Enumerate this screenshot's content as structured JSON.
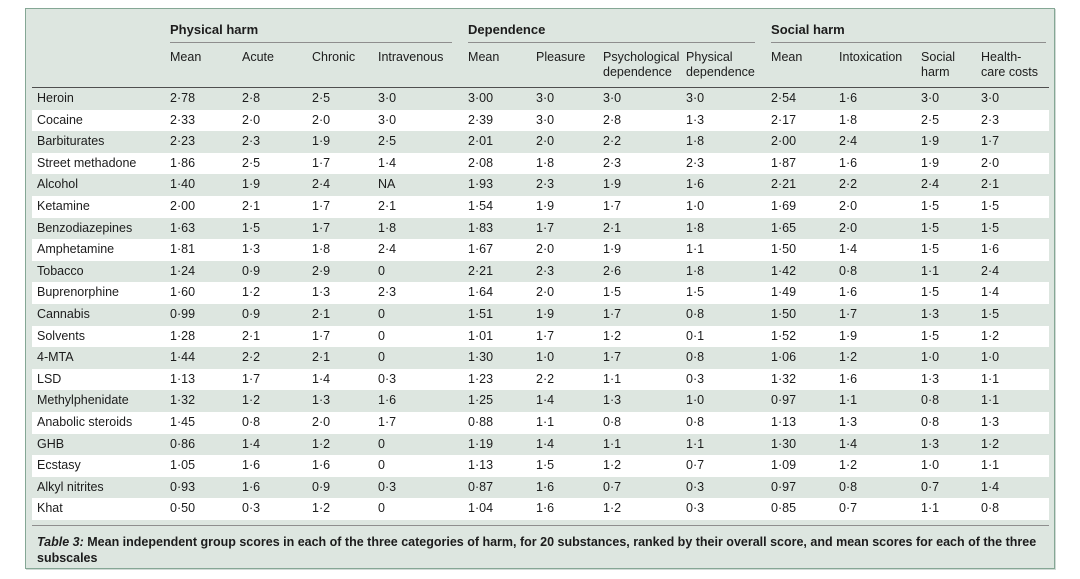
{
  "table": {
    "caption_label": "Table 3:",
    "caption_text": " Mean independent group scores in each of the three categories of harm, for 20 substances, ranked by their overall score, and mean scores for each of the three subscales",
    "groups": [
      {
        "label": "Physical harm",
        "columns": [
          "Mean",
          "Acute",
          "Chronic",
          "Intravenous"
        ]
      },
      {
        "label": "Dependence",
        "columns": [
          "Mean",
          "Pleasure",
          "Psychological dependence",
          "Physical dependence"
        ]
      },
      {
        "label": "Social harm",
        "columns": [
          "Mean",
          "Intoxication",
          "Social harm",
          "Health-care costs"
        ]
      }
    ],
    "rows": [
      {
        "name": "Heroin",
        "values": [
          "2·78",
          "2·8",
          "2·5",
          "3·0",
          "3·00",
          "3·0",
          "3·0",
          "3·0",
          "2·54",
          "1·6",
          "3·0",
          "3·0"
        ]
      },
      {
        "name": "Cocaine",
        "values": [
          "2·33",
          "2·0",
          "2·0",
          "3·0",
          "2·39",
          "3·0",
          "2·8",
          "1·3",
          "2·17",
          "1·8",
          "2·5",
          "2·3"
        ]
      },
      {
        "name": "Barbiturates",
        "values": [
          "2·23",
          "2·3",
          "1·9",
          "2·5",
          "2·01",
          "2·0",
          "2·2",
          "1·8",
          "2·00",
          "2·4",
          "1·9",
          "1·7"
        ]
      },
      {
        "name": "Street methadone",
        "values": [
          "1·86",
          "2·5",
          "1·7",
          "1·4",
          "2·08",
          "1·8",
          "2·3",
          "2·3",
          "1·87",
          "1·6",
          "1·9",
          "2·0"
        ]
      },
      {
        "name": "Alcohol",
        "values": [
          "1·40",
          "1·9",
          "2·4",
          "NA",
          "1·93",
          "2·3",
          "1·9",
          "1·6",
          "2·21",
          "2·2",
          "2·4",
          "2·1"
        ]
      },
      {
        "name": "Ketamine",
        "values": [
          "2·00",
          "2·1",
          "1·7",
          "2·1",
          "1·54",
          "1·9",
          "1·7",
          "1·0",
          "1·69",
          "2·0",
          "1·5",
          "1·5"
        ]
      },
      {
        "name": "Benzodiazepines",
        "values": [
          "1·63",
          "1·5",
          "1·7",
          "1·8",
          "1·83",
          "1·7",
          "2·1",
          "1·8",
          "1·65",
          "2·0",
          "1·5",
          "1·5"
        ]
      },
      {
        "name": "Amphetamine",
        "values": [
          "1·81",
          "1·3",
          "1·8",
          "2·4",
          "1·67",
          "2·0",
          "1·9",
          "1·1",
          "1·50",
          "1·4",
          "1·5",
          "1·6"
        ]
      },
      {
        "name": "Tobacco",
        "values": [
          "1·24",
          "0·9",
          "2·9",
          "0",
          "2·21",
          "2·3",
          "2·6",
          "1·8",
          "1·42",
          "0·8",
          "1·1",
          "2·4"
        ]
      },
      {
        "name": "Buprenorphine",
        "values": [
          "1·60",
          "1·2",
          "1·3",
          "2·3",
          "1·64",
          "2·0",
          "1·5",
          "1·5",
          "1·49",
          "1·6",
          "1·5",
          "1·4"
        ]
      },
      {
        "name": "Cannabis",
        "values": [
          "0·99",
          "0·9",
          "2·1",
          "0",
          "1·51",
          "1·9",
          "1·7",
          "0·8",
          "1·50",
          "1·7",
          "1·3",
          "1·5"
        ]
      },
      {
        "name": "Solvents",
        "values": [
          "1·28",
          "2·1",
          "1·7",
          "0",
          "1·01",
          "1·7",
          "1·2",
          "0·1",
          "1·52",
          "1·9",
          "1·5",
          "1·2"
        ]
      },
      {
        "name": "4-MTA",
        "values": [
          "1·44",
          "2·2",
          "2·1",
          "0",
          "1·30",
          "1·0",
          "1·7",
          "0·8",
          "1·06",
          "1·2",
          "1·0",
          "1·0"
        ]
      },
      {
        "name": "LSD",
        "values": [
          "1·13",
          "1·7",
          "1·4",
          "0·3",
          "1·23",
          "2·2",
          "1·1",
          "0·3",
          "1·32",
          "1·6",
          "1·3",
          "1·1"
        ]
      },
      {
        "name": "Methylphenidate",
        "values": [
          "1·32",
          "1·2",
          "1·3",
          "1·6",
          "1·25",
          "1·4",
          "1·3",
          "1·0",
          "0·97",
          "1·1",
          "0·8",
          "1·1"
        ]
      },
      {
        "name": "Anabolic steroids",
        "values": [
          "1·45",
          "0·8",
          "2·0",
          "1·7",
          "0·88",
          "1·1",
          "0·8",
          "0·8",
          "1·13",
          "1·3",
          "0·8",
          "1·3"
        ]
      },
      {
        "name": "GHB",
        "values": [
          "0·86",
          "1·4",
          "1·2",
          "0",
          "1·19",
          "1·4",
          "1·1",
          "1·1",
          "1·30",
          "1·4",
          "1·3",
          "1·2"
        ]
      },
      {
        "name": "Ecstasy",
        "values": [
          "1·05",
          "1·6",
          "1·6",
          "0",
          "1·13",
          "1·5",
          "1·2",
          "0·7",
          "1·09",
          "1·2",
          "1·0",
          "1·1"
        ]
      },
      {
        "name": "Alkyl nitrites",
        "values": [
          "0·93",
          "1·6",
          "0·9",
          "0·3",
          "0·87",
          "1·6",
          "0·7",
          "0·3",
          "0·97",
          "0·8",
          "0·7",
          "1·4"
        ]
      },
      {
        "name": "Khat",
        "values": [
          "0·50",
          "0·3",
          "1·2",
          "0",
          "1·04",
          "1·6",
          "1·2",
          "0·3",
          "0·85",
          "0·7",
          "1·1",
          "0·8"
        ]
      }
    ]
  },
  "colors": {
    "panel_background": "#dde6e0",
    "panel_border": "#85a795",
    "stripe_white": "#ffffff",
    "rule_gray": "#8e8e8e",
    "rule_dark": "#4f4f4f",
    "text": "#1c1c1c"
  }
}
